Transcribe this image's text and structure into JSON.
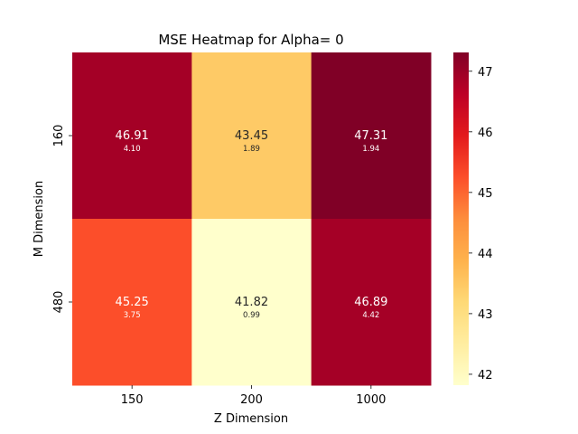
{
  "chart_data": {
    "type": "heatmap",
    "title": "MSE Heatmap for Alpha= 0",
    "xlabel": "Z Dimension",
    "ylabel": "M Dimension",
    "x_categories": [
      "150",
      "200",
      "1000"
    ],
    "y_categories": [
      "160",
      "480"
    ],
    "values": [
      [
        46.91,
        43.45,
        47.31
      ],
      [
        45.25,
        41.82,
        46.89
      ]
    ],
    "value_labels": [
      [
        "46.91",
        "43.45",
        "47.31"
      ],
      [
        "45.25",
        "41.82",
        "46.89"
      ]
    ],
    "std_labels": [
      [
        "4.10",
        "1.89",
        "1.94"
      ],
      [
        "3.75",
        "0.99",
        "4.42"
      ]
    ],
    "colorbar": {
      "colormap": "YlOrRd",
      "range": [
        41.82,
        47.31
      ],
      "ticks": [
        42,
        43,
        44,
        45,
        46,
        47
      ]
    }
  }
}
